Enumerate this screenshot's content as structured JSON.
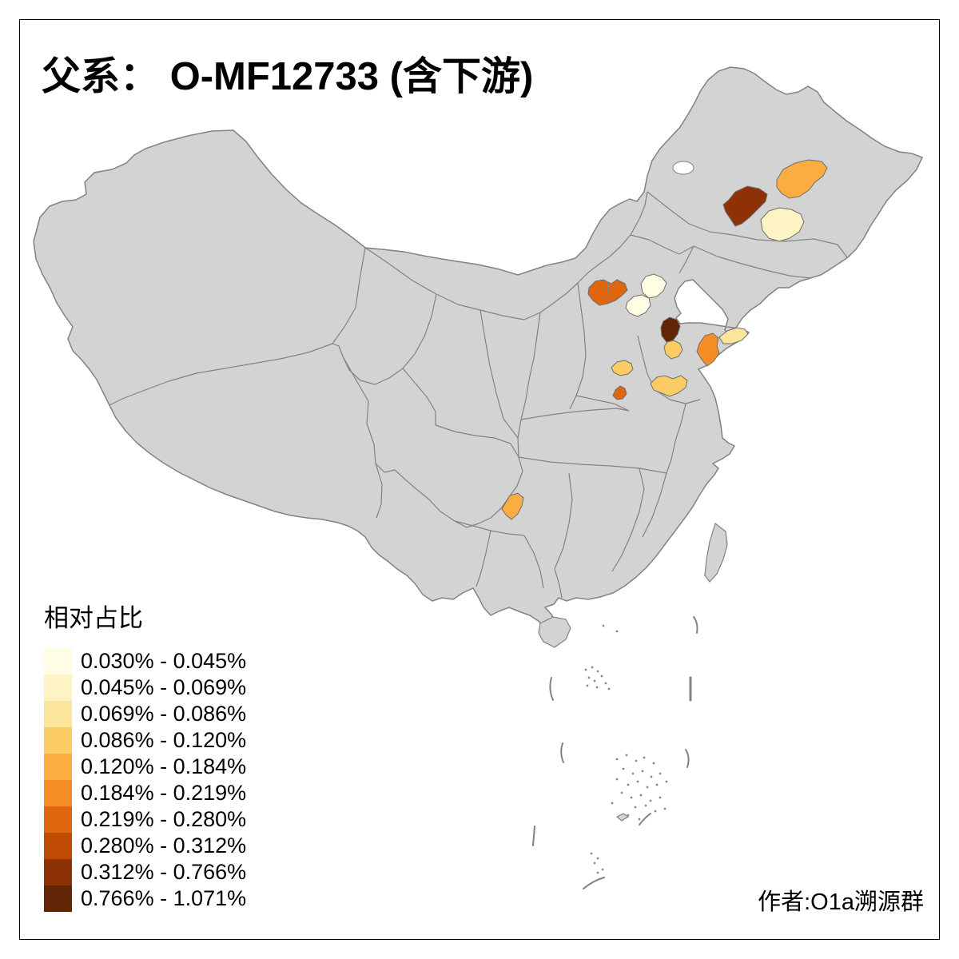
{
  "title": "父系： O-MF12733 (含下游)",
  "legend": {
    "title": "相对占比",
    "classes": [
      {
        "label": "0.030% - 0.045%",
        "color": "#FFFDE4"
      },
      {
        "label": "0.045% - 0.069%",
        "color": "#FDF3C3"
      },
      {
        "label": "0.069% - 0.086%",
        "color": "#FBE59B"
      },
      {
        "label": "0.086% - 0.120%",
        "color": "#FCCC64"
      },
      {
        "label": "0.120% - 0.184%",
        "color": "#FCAD42"
      },
      {
        "label": "0.184% - 0.219%",
        "color": "#F68C26"
      },
      {
        "label": "0.219% - 0.280%",
        "color": "#DD660E"
      },
      {
        "label": "0.280% - 0.312%",
        "color": "#BF4A04"
      },
      {
        "label": "0.312% - 0.766%",
        "color": "#8E3104"
      },
      {
        "label": "0.766% - 1.071%",
        "color": "#612405"
      }
    ]
  },
  "attribution": "作者:O1a溯源群",
  "map": {
    "land_color": "#D3D3D3",
    "border_color": "#828282",
    "sea_color": "#FFFFFF",
    "frame_color": "#000000",
    "highlighted_regions": [
      {
        "id": "region-ne-west-dark",
        "legend_class": 9,
        "range": "0.312% - 0.766%"
      },
      {
        "id": "region-ne-north-orange",
        "legend_class": 5,
        "range": "0.120% - 0.184%"
      },
      {
        "id": "region-ne-south-cream",
        "legend_class": 2,
        "range": "0.045% - 0.069%"
      },
      {
        "id": "region-northwest-hebei",
        "legend_class": 7,
        "range": "0.219% - 0.280%"
      },
      {
        "id": "region-beijing-area",
        "legend_class": 1,
        "range": "0.030% - 0.045%"
      },
      {
        "id": "region-beijing-southwest",
        "legend_class": 1,
        "range": "0.030% - 0.045%"
      },
      {
        "id": "region-shandong-northwest",
        "legend_class": 10,
        "range": "0.766% - 1.071%"
      },
      {
        "id": "region-shandong-west",
        "legend_class": 4,
        "range": "0.086% - 0.120%"
      },
      {
        "id": "region-shandong-east",
        "legend_class": 6,
        "range": "0.184% - 0.219%"
      },
      {
        "id": "region-shandong-peninsula",
        "legend_class": 3,
        "range": "0.069% - 0.086%"
      },
      {
        "id": "region-henan-north",
        "legend_class": 4,
        "range": "0.086% - 0.120%"
      },
      {
        "id": "region-henan-central",
        "legend_class": 7,
        "range": "0.219% - 0.280%"
      },
      {
        "id": "region-south-band",
        "legend_class": 4,
        "range": "0.086% - 0.120%"
      },
      {
        "id": "region-guizhou-central",
        "legend_class": 5,
        "range": "0.120% - 0.184%"
      }
    ]
  }
}
